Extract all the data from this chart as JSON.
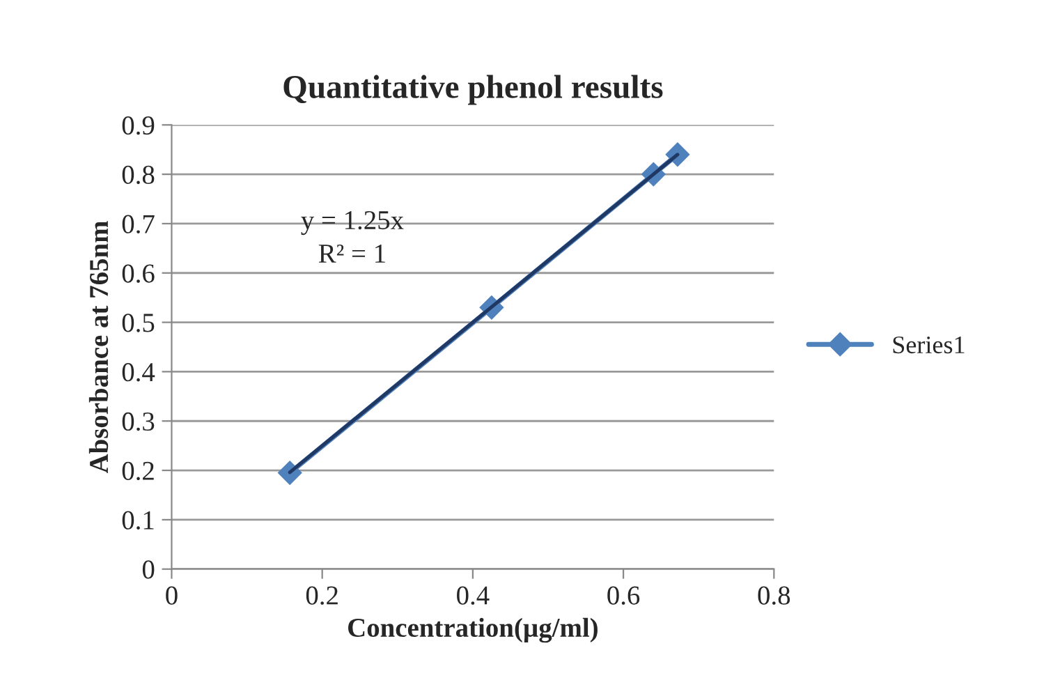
{
  "chart_data": {
    "type": "line",
    "title": "Quantitative phenol results",
    "xlabel": "Concentration(µg/ml)",
    "ylabel": "Absorbance at 765nm",
    "series": [
      {
        "name": "Series1",
        "color": "#4f81bd",
        "x": [
          0.157,
          0.425,
          0.64,
          0.672
        ],
        "values": [
          0.195,
          0.53,
          0.8,
          0.84
        ],
        "marker": "diamond"
      },
      {
        "type": "line",
        "color": "#1f3864",
        "x": [
          0.157,
          0.672
        ],
        "values": [
          0.196,
          0.84
        ],
        "marker": "none"
      }
    ],
    "annotations": [
      "y = 1.25x",
      "R² = 1"
    ],
    "xlim": [
      0,
      0.8
    ],
    "xticks": [
      0,
      0.2,
      0.4,
      0.6,
      0.8
    ],
    "ylim": [
      0,
      0.9
    ],
    "yticks": [
      0,
      0.1,
      0.2,
      0.3,
      0.4,
      0.5,
      0.6,
      0.7,
      0.8,
      0.9
    ],
    "grid": "y",
    "legend": "right",
    "line_style": "solid"
  }
}
